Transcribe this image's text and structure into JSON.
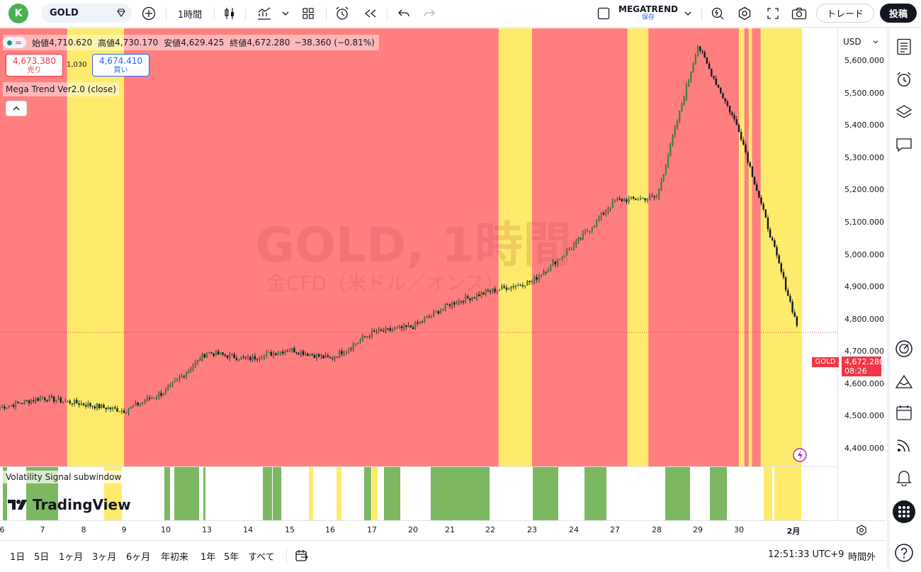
{
  "toolbar": {
    "avatar_letter": "K",
    "symbol": "GOLD",
    "interval": "1時間",
    "layout_name": "MEGATREND",
    "layout_status": "保存",
    "trade_label": "トレード",
    "publish_label": "投稿"
  },
  "legend": {
    "open_label": "始値",
    "open": "4,710.620",
    "high_label": "高値",
    "high": "4,730.170",
    "low_label": "安値",
    "low": "4,629.425",
    "close_label": "終値",
    "close": "4,672.280",
    "change": "−38.360 (−0.81%)",
    "sell_price": "4,673.380",
    "sell_label": "売り",
    "spread": "1,030",
    "buy_price": "4,674.410",
    "buy_label": "買い",
    "indicator": "Mega Trend Ver2.0 (close)",
    "collapse_icon": "^"
  },
  "watermark": {
    "title": "GOLD, 1時間",
    "subtitle": "金CFD（米ドル／オンス）"
  },
  "subwindow": {
    "label": "Volatility Signal subwindow",
    "brand": "TradingView"
  },
  "price_scale": {
    "currency": "USD",
    "ticks": [
      "5,600.000",
      "5,500.000",
      "5,400.000",
      "5,300.000",
      "5,200.000",
      "5,100.000",
      "5,000.000",
      "4,900.000",
      "4,800.000",
      "4,700.000",
      "4,600.000",
      "4,500.000",
      "4,400.000"
    ],
    "current_symbol": "GOLD",
    "current_price": "4,672.280",
    "countdown": "08:26"
  },
  "time_axis": {
    "labels": [
      "6",
      "7",
      "8",
      "9",
      "10",
      "13",
      "14",
      "15",
      "16",
      "17",
      "20",
      "21",
      "22",
      "23",
      "24",
      "27",
      "28",
      "29",
      "30",
      "2月"
    ]
  },
  "bottom_bar": {
    "ranges": [
      "1日",
      "5日",
      "1ヶ月",
      "3ヶ月",
      "6ヶ月",
      "年初来",
      "1年",
      "5年",
      "すべて"
    ],
    "clock": "12:51:33 UTC+9",
    "session": "時間外"
  },
  "colors": {
    "bull_zone": "#ff7f7f",
    "neutral_zone": "#ffeb6b",
    "signal_green": "#7cb862",
    "signal_yellow": "#ffeb6b",
    "price_red": "#f23645",
    "accent_blue": "#2962ff"
  },
  "chart_data": {
    "type": "candlestick",
    "symbol": "GOLD",
    "interval": "1時間",
    "ylim": [
      4350,
      5650
    ],
    "x_labels": [
      "6",
      "7",
      "8",
      "9",
      "10",
      "13",
      "14",
      "15",
      "16",
      "17",
      "20",
      "21",
      "22",
      "23",
      "24",
      "27",
      "28",
      "29",
      "30",
      "2月"
    ],
    "approx_close_path": [
      {
        "x": "6",
        "y": 4440
      },
      {
        "x": "7",
        "y": 4470
      },
      {
        "x": "8",
        "y": 4450
      },
      {
        "x": "9",
        "y": 4430
      },
      {
        "x": "10",
        "y": 4490
      },
      {
        "x": "13",
        "y": 4610
      },
      {
        "x": "14",
        "y": 4590
      },
      {
        "x": "15",
        "y": 4620
      },
      {
        "x": "16",
        "y": 4590
      },
      {
        "x": "17",
        "y": 4670
      },
      {
        "x": "20",
        "y": 4690
      },
      {
        "x": "21",
        "y": 4760
      },
      {
        "x": "22",
        "y": 4800
      },
      {
        "x": "23",
        "y": 4830
      },
      {
        "x": "24",
        "y": 4940
      },
      {
        "x": "27",
        "y": 5080
      },
      {
        "x": "28",
        "y": 5090
      },
      {
        "x": "29",
        "y": 5560
      },
      {
        "x": "30",
        "y": 5300
      },
      {
        "x": "2月",
        "y": 4672
      }
    ],
    "background_zones": [
      {
        "from": "6",
        "to": "7.6",
        "state": "red"
      },
      {
        "from": "7.6",
        "to": "9",
        "state": "yellow"
      },
      {
        "from": "9",
        "to": "22.2",
        "state": "red"
      },
      {
        "from": "22.2",
        "to": "23",
        "state": "yellow"
      },
      {
        "from": "23",
        "to": "27.3",
        "state": "red"
      },
      {
        "from": "27.3",
        "to": "27.8",
        "state": "yellow"
      },
      {
        "from": "27.8",
        "to": "30",
        "state": "red"
      },
      {
        "from": "30",
        "to": "30.4",
        "state": "mixed"
      },
      {
        "from": "30.4",
        "to": "2月",
        "state": "yellow"
      }
    ]
  }
}
